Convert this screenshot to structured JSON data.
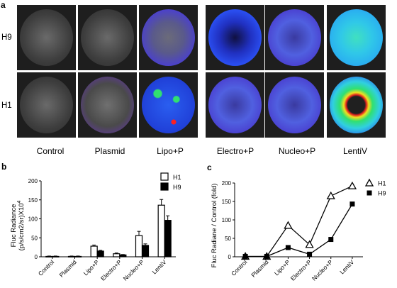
{
  "panels": {
    "a": "a",
    "b": "b",
    "c": "c"
  },
  "row_labels": [
    "H9",
    "H1"
  ],
  "conditions": [
    "Control",
    "Plasmid",
    "Lipo+P",
    "Electro+P",
    "Nucleo+P",
    "LentiV"
  ],
  "images": {
    "H9": [
      "grey",
      "grey",
      "weak-purple-blue",
      "blue",
      "purple-blue",
      "green-blue"
    ],
    "H1": [
      "grey",
      "purple-edge",
      "green-spots",
      "purple-blue",
      "purple-blue",
      "red-green-ring"
    ]
  },
  "chart_data": [
    {
      "type": "bar",
      "panel": "b",
      "categories": [
        "Control",
        "Plasmid",
        "Lipo+P",
        "Electro+P",
        "Nucleo+P",
        "LentiV"
      ],
      "ylabel_line1": "Fluc Radiance",
      "ylabel_line2": "(p/s/cm2/sr)X10",
      "ylabel_exp": "4",
      "ylim": [
        0,
        200
      ],
      "yticks": [
        "0",
        "50",
        "100",
        "150",
        "200"
      ],
      "legend_position": "top-right",
      "series": [
        {
          "name": "H1",
          "fill": "#ffffff",
          "values": [
            1,
            1,
            28,
            8,
            56,
            136
          ],
          "errors": [
            1,
            1,
            3,
            2,
            11,
            15
          ]
        },
        {
          "name": "H9",
          "fill": "#000000",
          "values": [
            1,
            1,
            15,
            5,
            30,
            96
          ],
          "errors": [
            1,
            1,
            2,
            1,
            4,
            12
          ]
        }
      ]
    },
    {
      "type": "line",
      "panel": "c",
      "categories": [
        "Control",
        "Plasmid",
        "Lipo+P",
        "Electro+P",
        "Nucleo+P",
        "LentiV"
      ],
      "ylabel": "Fluc Radiane / Control (fold)",
      "ylim": [
        0,
        200
      ],
      "yticks": [
        "0",
        "50",
        "100",
        "150",
        "200"
      ],
      "legend_position": "top-right",
      "series": [
        {
          "name": "H1",
          "marker": "open-triangle",
          "values": [
            1,
            1,
            85,
            33,
            165,
            192
          ]
        },
        {
          "name": "H9",
          "marker": "filled-square",
          "values": [
            1,
            1,
            25,
            7,
            47,
            143
          ]
        }
      ]
    }
  ]
}
